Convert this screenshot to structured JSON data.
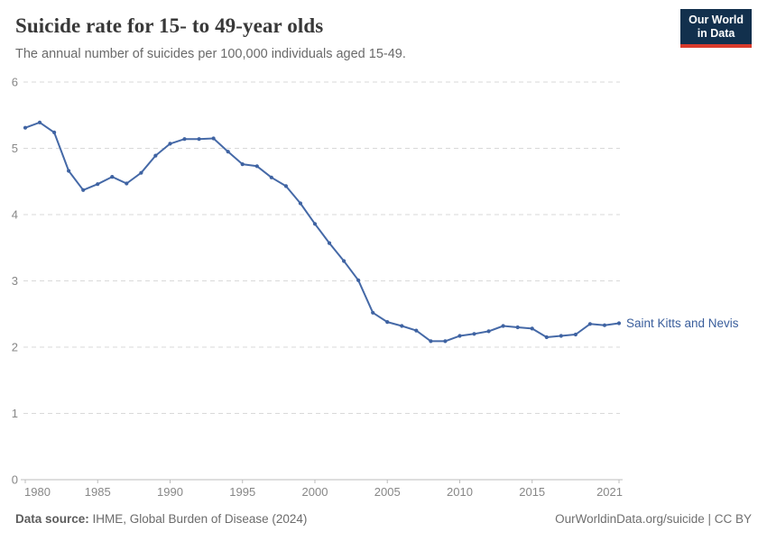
{
  "header": {
    "title": "Suicide rate for 15- to 49-year olds",
    "subtitle": "The annual number of suicides per 100,000 individuals aged 15-49."
  },
  "logo": {
    "line1": "Our World",
    "line2": "in Data"
  },
  "footer": {
    "source_label": "Data source:",
    "source_text": " IHME, Global Burden of Disease (2024)",
    "link_text": "OurWorldinData.org/suicide | CC BY"
  },
  "colors": {
    "line": "#4569a7",
    "marker": "#3f63a2",
    "series_label": "#3a5e9c",
    "grid": "#d9d9d9",
    "axis": "#bcbcbc",
    "tick_text": "#878787",
    "logo_bg": "#12304d",
    "logo_stripe": "#d93a2b"
  },
  "chart_data": {
    "type": "line",
    "title": "Suicide rate for 15- to 49-year olds",
    "xlabel": "",
    "ylabel": "",
    "xlim": [
      1980,
      2021
    ],
    "ylim": [
      0,
      6
    ],
    "grid": "horizontal-dashed",
    "legend_position": "end-of-line",
    "markers": true,
    "x_ticks": [
      1980,
      1985,
      1990,
      1995,
      2000,
      2005,
      2010,
      2015,
      2021
    ],
    "y_ticks": [
      0,
      1,
      2,
      3,
      4,
      5,
      6
    ],
    "series": [
      {
        "name": "Saint Kitts and Nevis",
        "x": [
          1980,
          1981,
          1982,
          1983,
          1984,
          1985,
          1986,
          1987,
          1988,
          1989,
          1990,
          1991,
          1992,
          1993,
          1994,
          1995,
          1996,
          1997,
          1998,
          1999,
          2000,
          2001,
          2002,
          2003,
          2004,
          2005,
          2006,
          2007,
          2008,
          2009,
          2010,
          2011,
          2012,
          2013,
          2014,
          2015,
          2016,
          2017,
          2018,
          2019,
          2020,
          2021
        ],
        "values": [
          5.31,
          5.39,
          5.24,
          4.66,
          4.37,
          4.46,
          4.57,
          4.47,
          4.63,
          4.89,
          5.07,
          5.14,
          5.14,
          5.15,
          4.95,
          4.76,
          4.73,
          4.56,
          4.43,
          4.17,
          3.86,
          3.57,
          3.3,
          3.01,
          2.52,
          2.38,
          2.32,
          2.25,
          2.09,
          2.09,
          2.17,
          2.2,
          2.24,
          2.32,
          2.3,
          2.28,
          2.15,
          2.17,
          2.19,
          2.35,
          2.33,
          2.36
        ]
      }
    ]
  }
}
